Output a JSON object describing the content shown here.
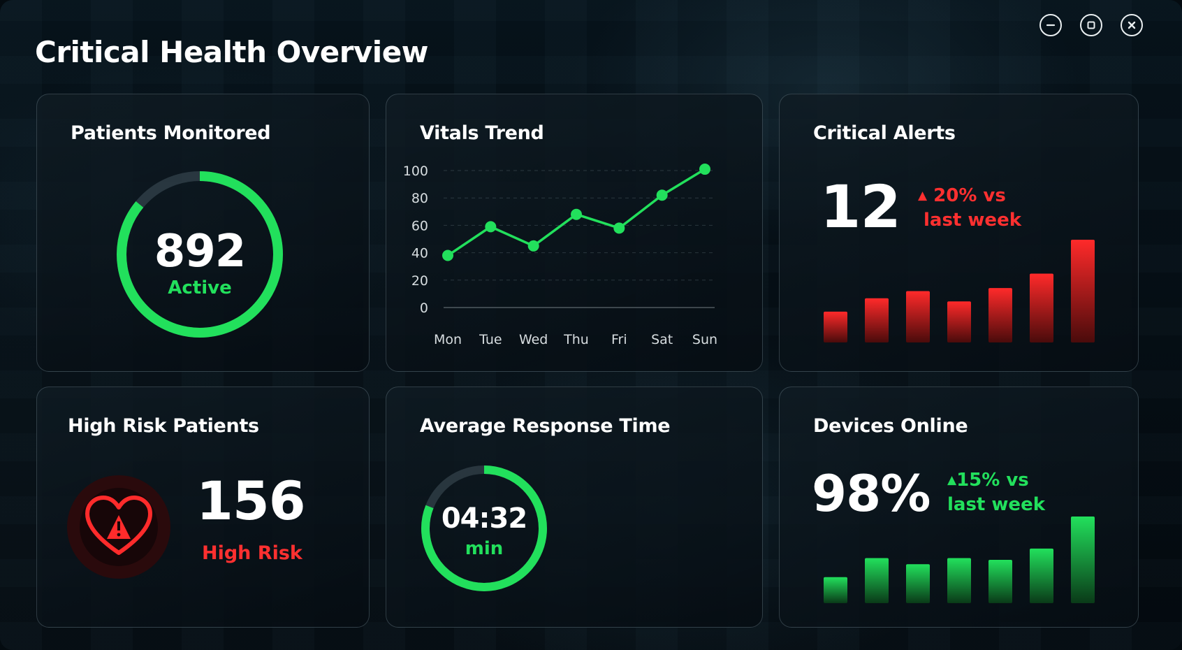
{
  "app": {
    "title": "Critical Health Overview"
  },
  "window_controls": {
    "minimize": "minimize",
    "maximize": "maximize",
    "close": "close"
  },
  "colors": {
    "green": "#22e05c",
    "red": "#ff3030",
    "background": "#050d13"
  },
  "patients": {
    "title": "Patients Monitored",
    "value": "892",
    "status": "Active",
    "ring_fill_fraction": 0.86
  },
  "vitals": {
    "title": "Vitals Trend",
    "chart_data": {
      "type": "line",
      "categories": [
        "Mon",
        "Tue",
        "Wed",
        "Thu",
        "Fri",
        "Sat",
        "Sun"
      ],
      "values": [
        38,
        59,
        45,
        68,
        58,
        82,
        101
      ],
      "ylim": [
        0,
        100
      ],
      "yticks": [
        0,
        20,
        40,
        60,
        80,
        100
      ],
      "grid": true,
      "color": "#22e05c"
    }
  },
  "alerts": {
    "title": "Critical Alerts",
    "value": "12",
    "trend_line1": "20% vs",
    "trend_line2": "last week",
    "trend_direction": "up",
    "bars": [
      0.3,
      0.43,
      0.5,
      0.4,
      0.53,
      0.67,
      1.0
    ]
  },
  "highrisk": {
    "title": "High Risk Patients",
    "value": "156",
    "label": "High Risk",
    "icon": "heart-alert-icon"
  },
  "response": {
    "title": "Average Response Time",
    "value": "04:32",
    "unit": "min",
    "ring_fill_fraction": 0.81
  },
  "devices": {
    "title": "Devices Online",
    "value": "98%",
    "trend_line1": "15% vs",
    "trend_line2": "last week",
    "trend_direction": "up",
    "bars": [
      0.3,
      0.52,
      0.45,
      0.52,
      0.5,
      0.63,
      1.0
    ]
  }
}
